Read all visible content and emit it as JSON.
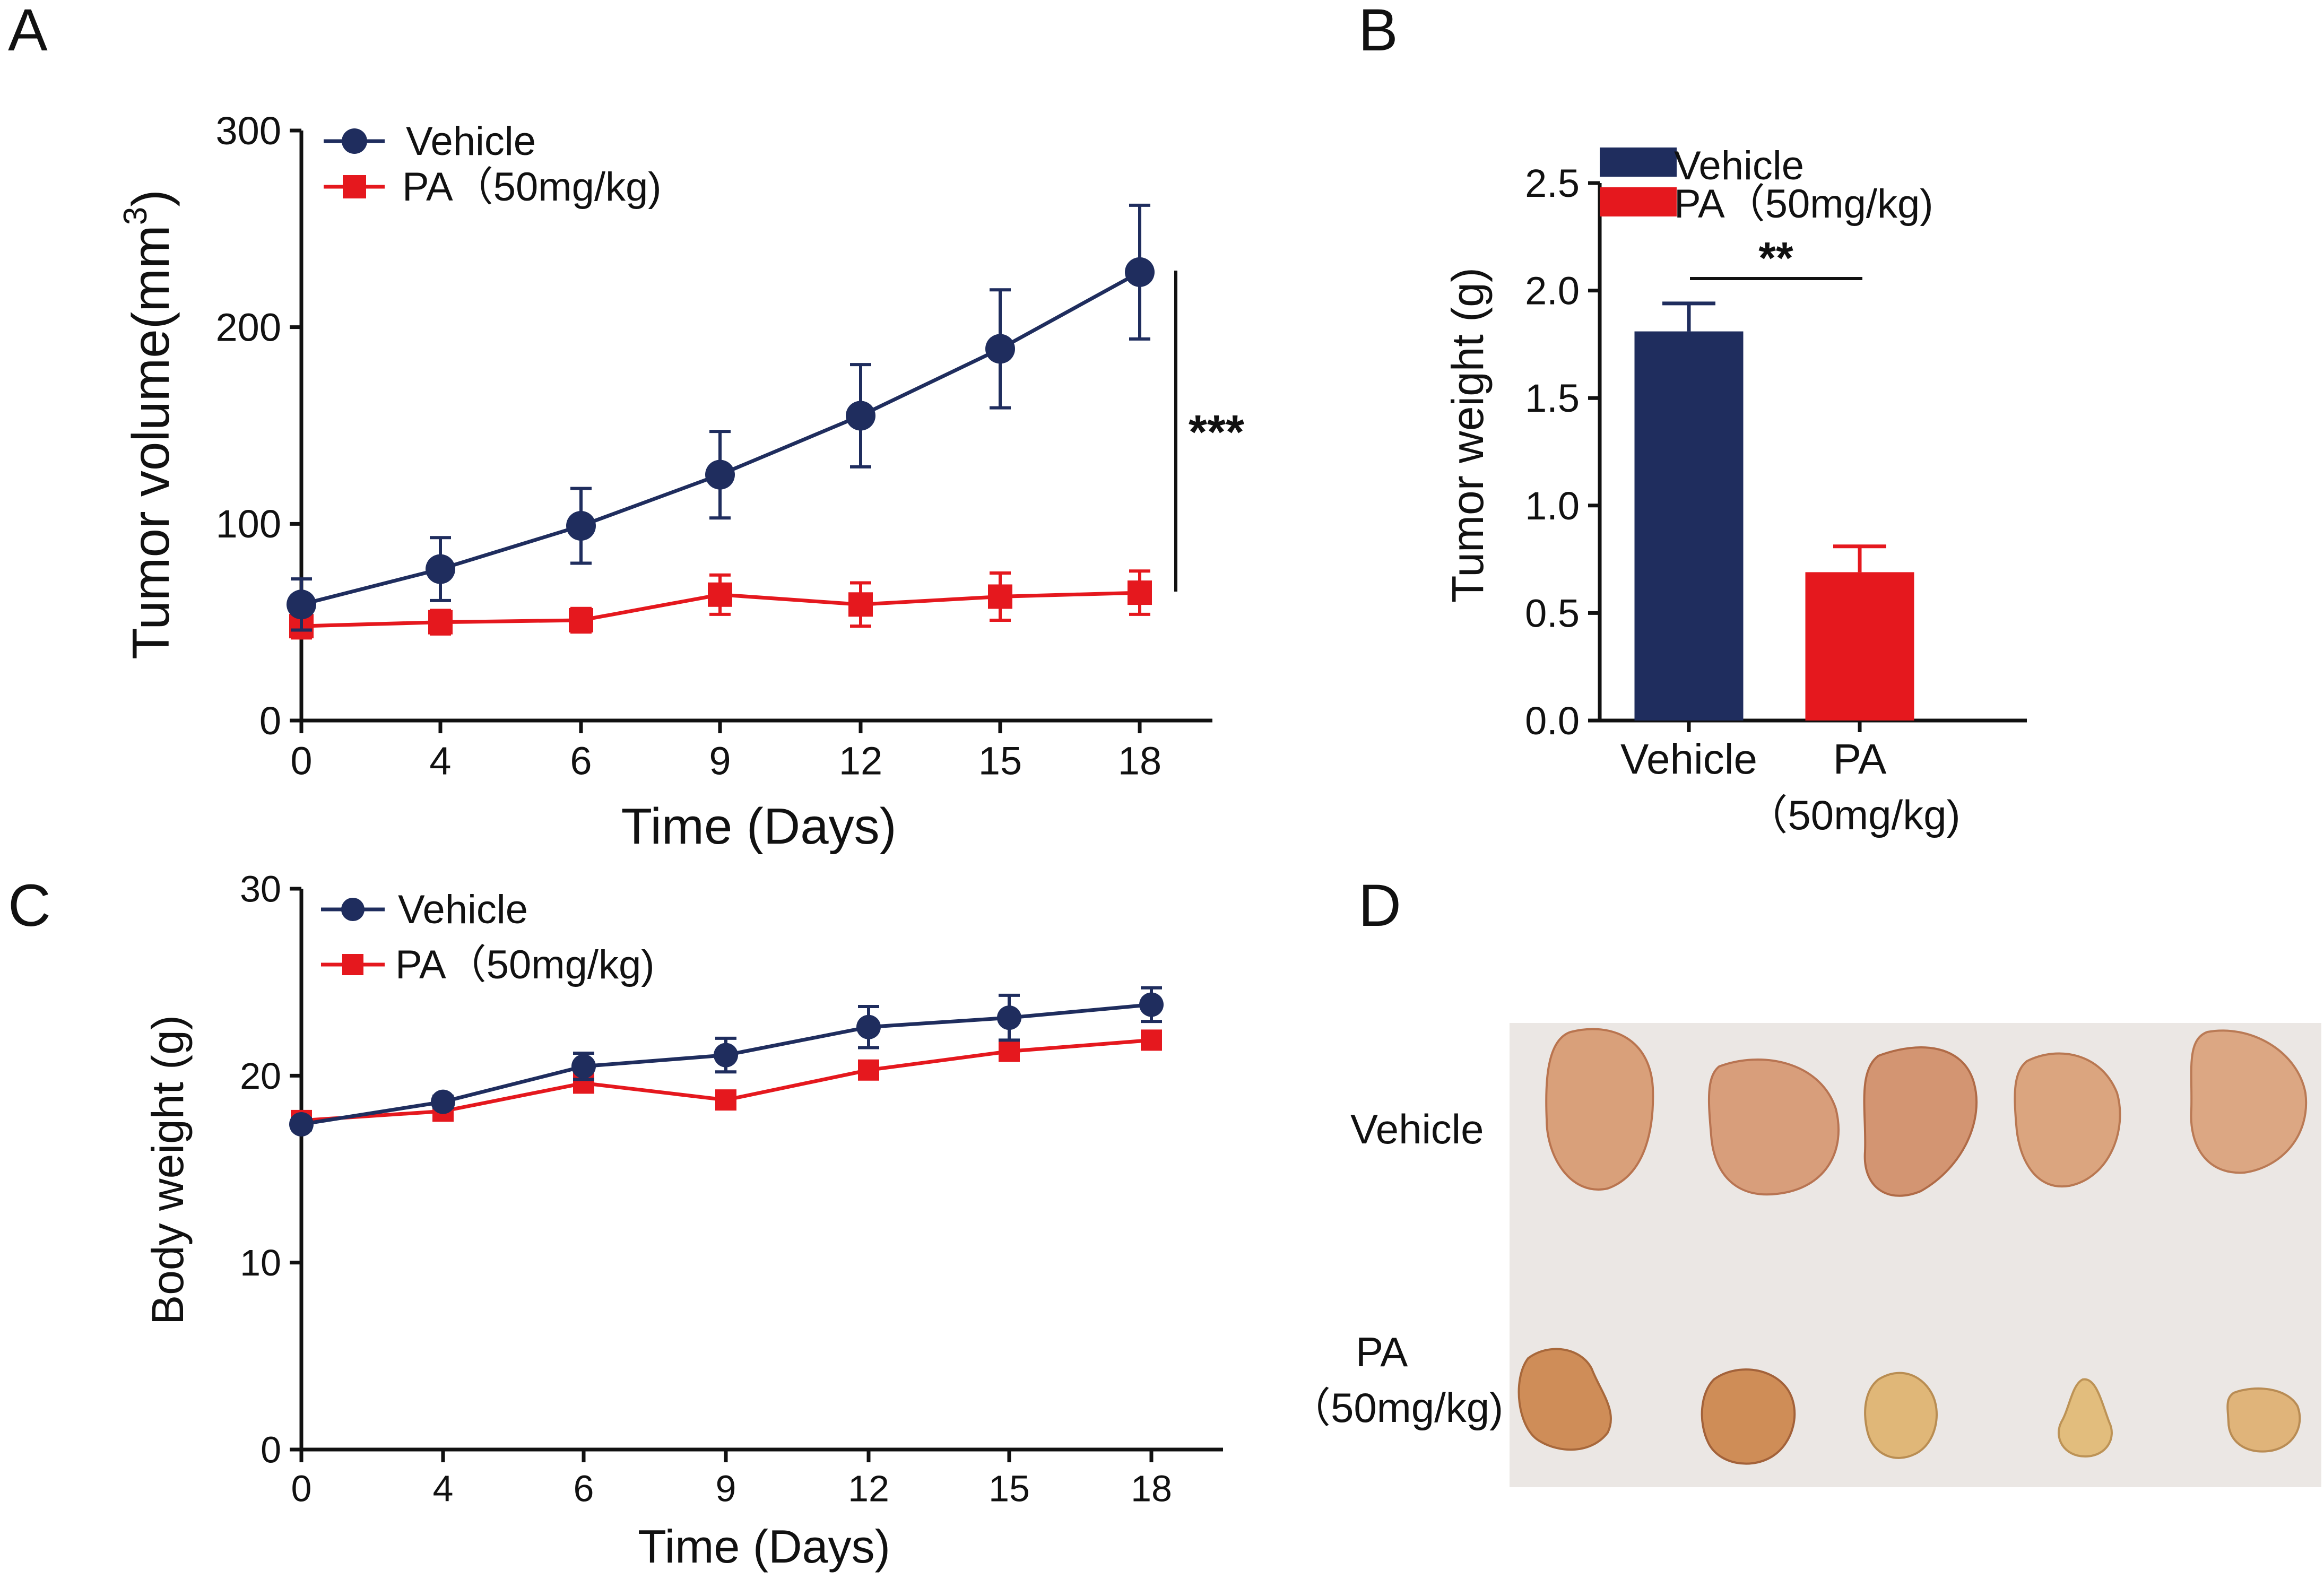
{
  "colors": {
    "vehicle": "#1f2d5e",
    "pa": "#e5181e",
    "axis": "#111111",
    "photo_bg": "#ebe7e4"
  },
  "panels": {
    "a": {
      "letter": "A"
    },
    "b": {
      "letter": "B"
    },
    "c": {
      "letter": "C"
    },
    "d": {
      "letter": "D",
      "row_labels": [
        "Vehicle",
        "PA",
        "（50mg/kg)"
      ],
      "description": "Photograph of excised tumors: 5 Vehicle tumors (top row), 5 PA (50mg/kg) tumors (bottom row)"
    }
  },
  "chart_data": [
    {
      "id": "A",
      "type": "line",
      "xlabel": "Time (Days)",
      "ylabel": "Tumor volume(mm",
      "ylabel_sup": "3",
      "ylabel_end": ")",
      "x": [
        0,
        4,
        6,
        9,
        12,
        15,
        18
      ],
      "x_tick_labels": [
        "0",
        "4",
        "6",
        "9",
        "12",
        "15",
        "18"
      ],
      "ylim": [
        0,
        300
      ],
      "y_ticks": [
        0,
        100,
        200,
        300
      ],
      "y_tick_labels": [
        "0",
        "100",
        "200",
        "300"
      ],
      "legend": [
        "Vehicle",
        "PA（50mg/kg)"
      ],
      "legend_position": "top-left",
      "series": [
        {
          "name": "Vehicle",
          "marker": "circle",
          "values": [
            59,
            77,
            99,
            125,
            155,
            189,
            228
          ],
          "errors": [
            13,
            16,
            19,
            22,
            26,
            30,
            34
          ]
        },
        {
          "name": "PA（50mg/kg)",
          "marker": "square",
          "values": [
            48,
            50,
            51,
            64,
            59,
            63,
            65
          ],
          "errors": [
            6,
            6,
            6,
            10,
            11,
            12,
            11
          ]
        }
      ],
      "significance": "***"
    },
    {
      "id": "B",
      "type": "bar",
      "categories": [
        "Vehicle",
        "PA"
      ],
      "category_sublabels": [
        "",
        "（50mg/kg)"
      ],
      "values": [
        1.81,
        0.69
      ],
      "errors": [
        0.13,
        0.12
      ],
      "ylabel": "Tumor weight (g)",
      "ylim": [
        0,
        2.5
      ],
      "y_ticks": [
        0,
        0.5,
        1.0,
        1.5,
        2.0,
        2.5
      ],
      "y_tick_labels": [
        "0.0",
        "0.5",
        "1.0",
        "1.5",
        "2.0",
        "2.5"
      ],
      "legend": [
        "Vehicle",
        "PA（50mg/kg)"
      ],
      "legend_position": "top",
      "significance": "**"
    },
    {
      "id": "C",
      "type": "line",
      "xlabel": "Time (Days)",
      "ylabel": "Body weight (g)",
      "x": [
        0,
        4,
        6,
        9,
        12,
        15,
        18
      ],
      "x_tick_labels": [
        "0",
        "4",
        "6",
        "9",
        "12",
        "15",
        "18"
      ],
      "ylim": [
        0,
        30
      ],
      "y_ticks": [
        0,
        10,
        20,
        30
      ],
      "y_tick_labels": [
        "0",
        "10",
        "20",
        "30"
      ],
      "legend": [
        "Vehicle",
        "PA（50mg/kg)"
      ],
      "legend_position": "top-left",
      "series": [
        {
          "name": "Vehicle",
          "marker": "circle",
          "values": [
            17.4,
            18.6,
            20.5,
            21.1,
            22.6,
            23.1,
            23.8
          ],
          "errors": [
            0.3,
            0.3,
            0.7,
            0.9,
            1.1,
            1.2,
            0.9
          ]
        },
        {
          "name": "PA（50mg/kg)",
          "marker": "square",
          "values": [
            17.6,
            18.1,
            19.6,
            18.7,
            20.3,
            21.3,
            21.9
          ],
          "errors": [
            0.3,
            0.3,
            0.4,
            0.3,
            0.4,
            0.4,
            0.4
          ]
        }
      ]
    }
  ]
}
